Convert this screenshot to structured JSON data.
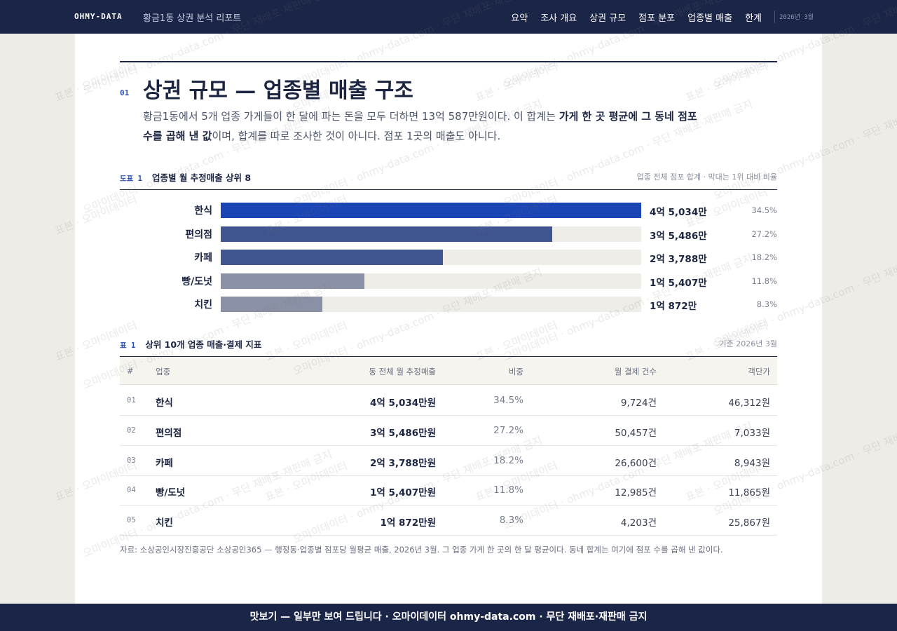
{
  "header": {
    "brand": "OHMY-DATA",
    "report_title": "황금1동 상권 분석 리포트",
    "nav": [
      "요약",
      "조사 개요",
      "상권 규모",
      "점포 분포",
      "업종별 매출",
      "한계"
    ],
    "date": "2026년 3월"
  },
  "section": {
    "number": "01",
    "title": "상권 규모 — 업종별 매출 구조",
    "lead_part1": "황금1동에서 5개 업종 가게들이 한 달에 파는 돈을 모두 더하면 13억 587만원이다. 이 합계는 ",
    "lead_bold": "가게 한 곳 평균에 그 동네 점포 수를 곱해 낸 값",
    "lead_part2": "이며, 합계를 따로 조사한 것이 아니다. 점포 1곳의 매출도 아니다."
  },
  "figure": {
    "number": "도표 1",
    "title": "업종별 월 추정매출 상위 8",
    "note": "업종 전체 점포 합계 · 막대는 1위 대비 비율"
  },
  "chart_data": {
    "type": "bar",
    "orientation": "horizontal",
    "categories": [
      "한식",
      "편의점",
      "카페",
      "빵/도넛",
      "치킨"
    ],
    "values": [
      450340000,
      354860000,
      237880000,
      154070000,
      108720000
    ],
    "value_labels": [
      "4억 5,034만",
      "3억 5,486만",
      "2억 3,788만",
      "1억 5,407만",
      "1억 872만"
    ],
    "share_labels": [
      "34.5%",
      "27.2%",
      "18.2%",
      "11.8%",
      "8.3%"
    ],
    "colors": [
      "#1b44b5",
      "#3e5590",
      "#3e5590",
      "#8a91a6",
      "#8a91a6"
    ],
    "track_color": "#efede7",
    "title": "업종별 월 추정매출 상위 8",
    "xlabel": "",
    "ylabel": "",
    "xlim": [
      0,
      450340000
    ],
    "grid": false
  },
  "table": {
    "number": "표 1",
    "title": "상위 10개 업종 매출·결제 지표",
    "note": "기준 2026년 3월",
    "columns": [
      "#",
      "업종",
      "동 전체 월 추정매출",
      "비중",
      "월 결제 건수",
      "객단가"
    ],
    "rows": [
      {
        "rank": "01",
        "name": "한식",
        "sales": "4억 5,034만원",
        "share": "34.5%",
        "count": "9,724건",
        "avg": "46,312원"
      },
      {
        "rank": "02",
        "name": "편의점",
        "sales": "3억 5,486만원",
        "share": "27.2%",
        "count": "50,457건",
        "avg": "7,033원"
      },
      {
        "rank": "03",
        "name": "카페",
        "sales": "2억 3,788만원",
        "share": "18.2%",
        "count": "26,600건",
        "avg": "8,943원"
      },
      {
        "rank": "04",
        "name": "빵/도넛",
        "sales": "1억 5,407만원",
        "share": "11.8%",
        "count": "12,985건",
        "avg": "11,865원"
      },
      {
        "rank": "05",
        "name": "치킨",
        "sales": "1억 872만원",
        "share": "8.3%",
        "count": "4,203건",
        "avg": "25,867원"
      }
    ]
  },
  "source": "자료: 소상공인시장진흥공단 소상공인365 — 행정동·업종별 점포당 월평균 매출, 2026년 3월. 그 업종 가게 한 곳의 한 달 평균이다. 동네 합계는 여기에 점포 수를 곱해 낸 값이다.",
  "watermark": {
    "texts": [
      "표본 · 오마이데이터",
      "오마이데이터 · ohmy-data.com · 무단 재배포·재판매 금지"
    ]
  },
  "footer": "맛보기 — 일부만 보여 드립니다 · 오마이데이터 ohmy-data.com · 무단 재배포·재판매 금지"
}
